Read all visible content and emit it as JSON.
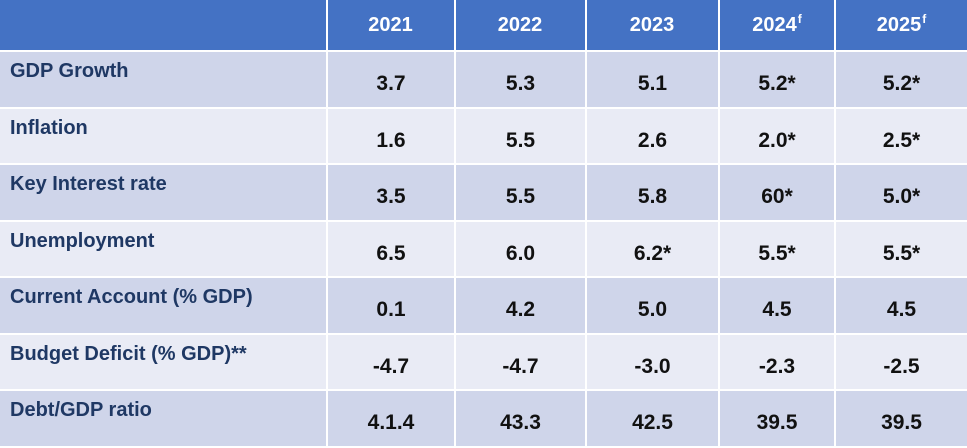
{
  "table": {
    "corner": "",
    "columns": [
      {
        "year": "2021",
        "marker": ""
      },
      {
        "year": "2022",
        "marker": ""
      },
      {
        "year": "2023",
        "marker": ""
      },
      {
        "year": "2024",
        "marker": "f"
      },
      {
        "year": "2025",
        "marker": "f"
      }
    ],
    "rows": [
      {
        "label": "GDP Growth",
        "values": [
          "3.7",
          "5.3",
          "5.1",
          "5.2*",
          "5.2*"
        ]
      },
      {
        "label": "Inflation",
        "values": [
          "1.6",
          "5.5",
          "2.6",
          "2.0*",
          "2.5*"
        ]
      },
      {
        "label": "Key Interest rate",
        "values": [
          "3.5",
          "5.5",
          "5.8",
          "60*",
          "5.0*"
        ]
      },
      {
        "label": "Unemployment",
        "values": [
          "6.5",
          "6.0",
          "6.2*",
          "5.5*",
          "5.5*"
        ]
      },
      {
        "label": "Current Account (% GDP)",
        "values": [
          "0.1",
          "4.2",
          "5.0",
          "4.5",
          "4.5"
        ]
      },
      {
        "label": "Budget Deficit (% GDP)**",
        "values": [
          "-4.7",
          "-4.7",
          "-3.0",
          "-2.3",
          "-2.5"
        ]
      },
      {
        "label": "Debt/GDP ratio",
        "values": [
          "4.1.4",
          "43.3",
          "42.5",
          "39.5",
          "39.5"
        ]
      }
    ]
  },
  "colors": {
    "header_bg": "#4472c4",
    "header_text": "#ffffff",
    "row_dark": "#cfd5ea",
    "row_light": "#e9ebf5",
    "label_text": "#1f3864",
    "value_text": "#111111"
  }
}
